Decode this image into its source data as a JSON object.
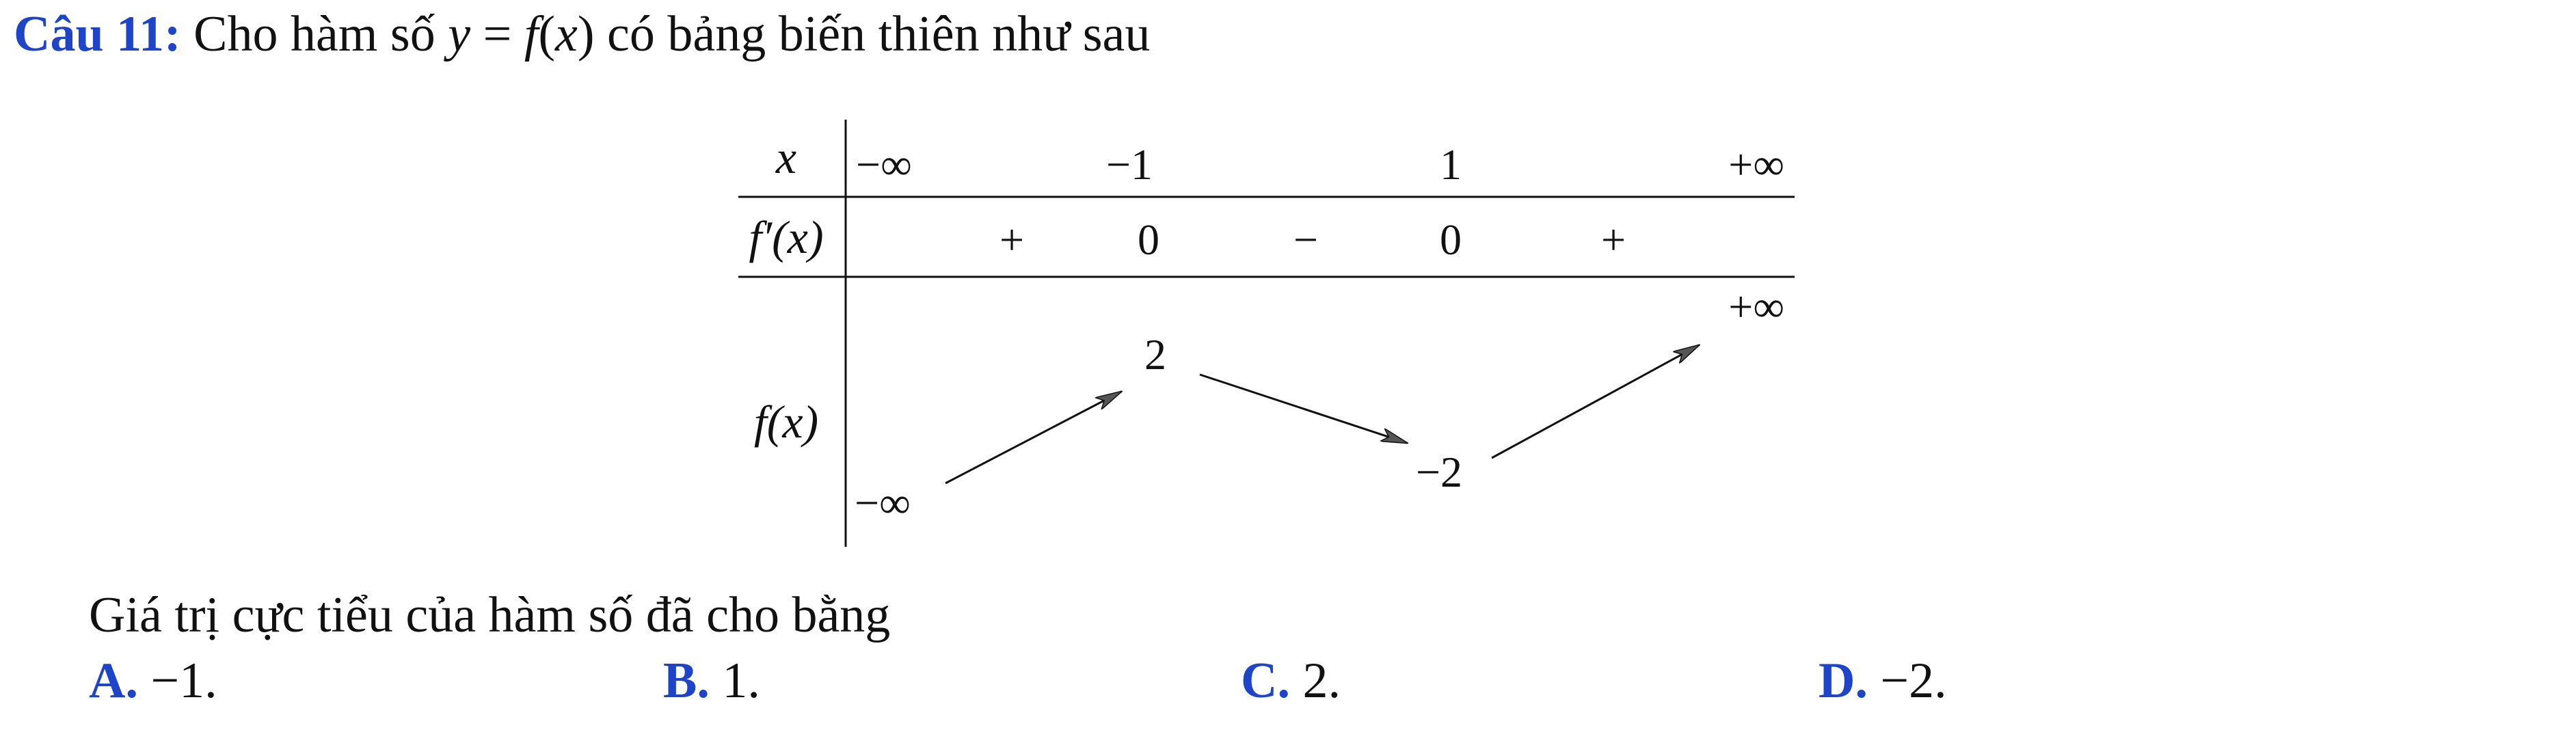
{
  "question": {
    "label": "Câu 11:",
    "text_before": "Cho hàm số",
    "math_y": "y",
    "math_eq": " = ",
    "math_f": "f",
    "math_paren_open": "(",
    "math_x": "x",
    "math_paren_close": ")",
    "text_after": "có bảng biến thiên như sau"
  },
  "variation_table": {
    "row_labels": {
      "x": "x",
      "fprime": "f′(x)",
      "f": "f(x)"
    },
    "x_values": [
      "−∞",
      "−1",
      "1",
      "+∞"
    ],
    "fprime_values": [
      "+",
      "0",
      "−",
      "0",
      "+"
    ],
    "f_values": [
      "−∞",
      "2",
      "−2",
      "+∞"
    ]
  },
  "prompt": "Giá trị cực tiểu của hàm số đã cho bằng",
  "options": [
    {
      "letter": "A.",
      "value": "−1."
    },
    {
      "letter": "B.",
      "value": "1."
    },
    {
      "letter": "C.",
      "value": "2."
    },
    {
      "letter": "D.",
      "value": "−2."
    }
  ],
  "colors": {
    "accent": "#1e44c8",
    "text": "#111111",
    "lines": "#111111"
  }
}
